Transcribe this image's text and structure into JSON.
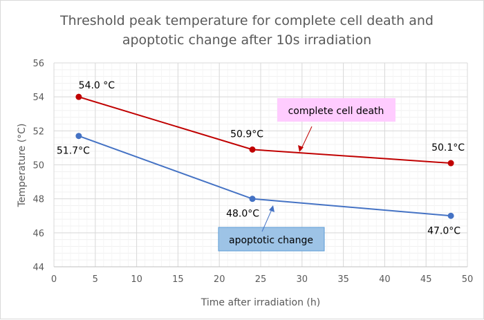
{
  "chart_data": {
    "type": "line",
    "title_lines": [
      "Threshold peak temperature for complete cell death and",
      "apoptotic change after 10s irradiation"
    ],
    "xlabel": "Time after irradiation (h)",
    "ylabel": "Temperature (°C)",
    "xlim": [
      0,
      50
    ],
    "ylim": [
      44,
      56
    ],
    "xticks": [
      0,
      5,
      10,
      15,
      20,
      25,
      30,
      35,
      40,
      45,
      50
    ],
    "yticks": [
      44,
      46,
      48,
      50,
      52,
      54,
      56
    ],
    "grid": {
      "major": true,
      "minor": true
    },
    "series": [
      {
        "name": "complete cell death",
        "color": "#c00000",
        "x": [
          3,
          24,
          48
        ],
        "y": [
          54.0,
          50.9,
          50.1
        ],
        "labels": [
          "54.0 °C",
          "50.9°C",
          "50.1°C"
        ]
      },
      {
        "name": "apoptotic change",
        "color": "#4472c4",
        "x": [
          3,
          24,
          48
        ],
        "y": [
          51.7,
          48.0,
          47.0
        ],
        "labels": [
          "51.7°C",
          "48.0°C",
          "47.0°C"
        ]
      }
    ],
    "annotations": [
      {
        "text": "complete cell death",
        "box_color": "#ffccff",
        "series": 0
      },
      {
        "text": "apoptotic change",
        "box_color": "#9dc3e6",
        "series": 1
      }
    ]
  }
}
